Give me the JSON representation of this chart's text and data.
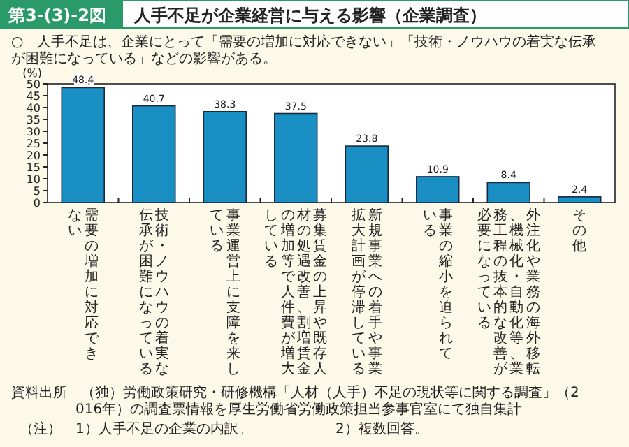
{
  "chart_data": {
    "type": "bar",
    "title": "人手不足が企業経営に与える影響（企業調査）",
    "subtitle": "○　人手不足は、企業にとって「需要の増加に対応できない」「技術・ノウハウの着実な伝承が困難になっている」などの影響がある。",
    "ylabel": "(%)",
    "categories": [
      "需要の増加に対応できない",
      "技術・ノウハウの着実な伝承が困難になっている",
      "事業運営上に支障を来している",
      "募集賃金の上昇や既存人材の処遇改善、割増賃金の増加等で人件費が増大している",
      "新規事業への着手や事業拡大計画が停滞している",
      "事業の縮小を迫られている",
      "外注化や業務の海外移転、機械化・自動化等、業務工程の抜本的な改善が必要になっている",
      "その他"
    ],
    "values": [
      48.4,
      40.7,
      38.3,
      37.5,
      23.8,
      10.9,
      8.4,
      2.4
    ],
    "color": "#1a8fc4",
    "data_labels": true,
    "ylim": [
      0,
      50
    ],
    "yticks": [
      0,
      5,
      10,
      15,
      20,
      25,
      30,
      35,
      40,
      45,
      50
    ],
    "grid": false,
    "annotations": [
      "第3-(3)-2図",
      "資料出所　（独）労働政策研究・研修機構「人材（人手）不足の現状等に関する調査」（2016年）の調査票情報を厚生労働省労働政策担当参事官室にて独自集計",
      "（注）　1）人手不足の企業の内訳。",
      "2）複数回答。"
    ]
  }
}
